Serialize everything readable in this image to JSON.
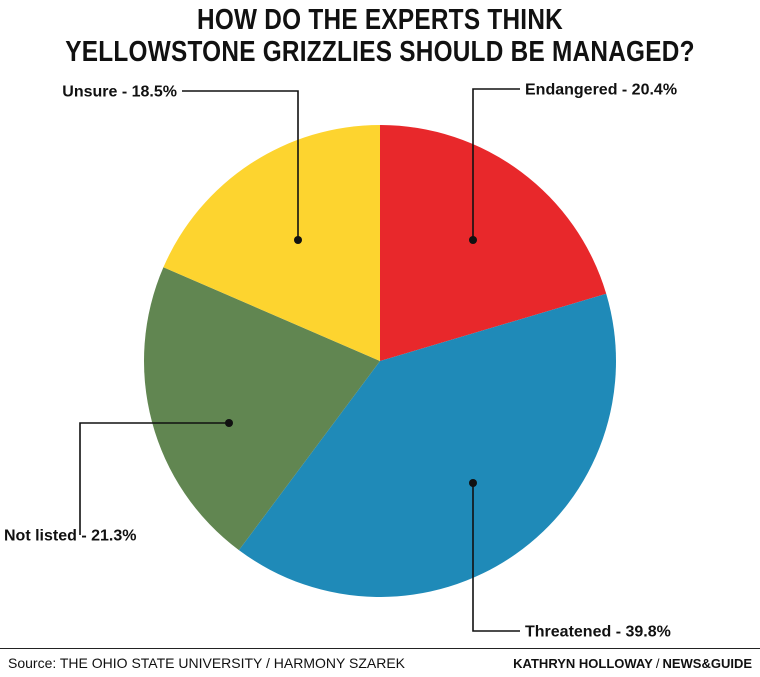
{
  "chart_data": {
    "type": "pie",
    "title_lines": [
      "HOW DO THE EXPERTS THINK",
      "YELLOWSTONE GRIZZLIES SHOULD BE MANAGED?"
    ],
    "slices": [
      {
        "label": "Endangered",
        "value": 20.4,
        "display": "Endangered - 20.4%",
        "color": "#e8282b"
      },
      {
        "label": "Threatened",
        "value": 39.8,
        "display": "Threatened - 39.8%",
        "color": "#1f8ab8"
      },
      {
        "label": "Not listed",
        "value": 21.3,
        "display": "Not listed - 21.3%",
        "color": "#618651"
      },
      {
        "label": "Unsure",
        "value": 18.5,
        "display": "Unsure - 18.5%",
        "color": "#fdd42f"
      }
    ]
  },
  "footer": {
    "source": "Source: THE OHIO STATE UNIVERSITY / HARMONY SZAREK",
    "author": "KATHRYN HOLLOWAY",
    "separator": "/",
    "outlet": "NEWS&GUIDE"
  }
}
